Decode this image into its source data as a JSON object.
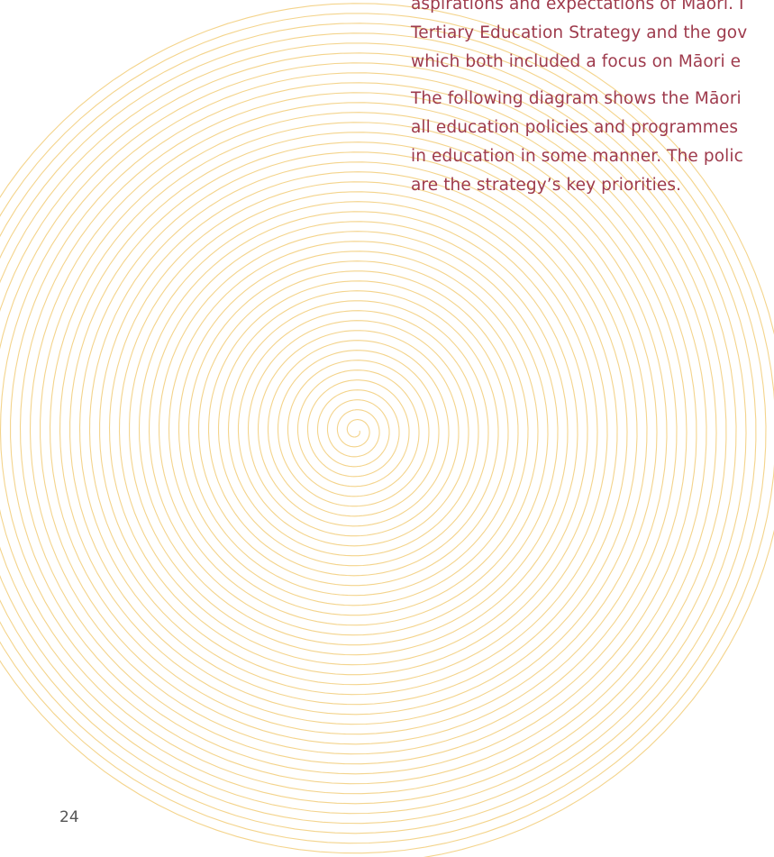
{
  "body": {
    "paragraphs": [
      {
        "lines": [
          "aspirations and expectations of Māori. I",
          "Tertiary Education Strategy and the gov",
          "which both included a focus on Māori e"
        ]
      },
      {
        "lines": [
          "The following diagram shows the Māori",
          "all education policies and programmes",
          "in education in some manner. The polic",
          "are the strategy’s key priorities."
        ]
      }
    ]
  },
  "footer": {
    "page_number": "24"
  }
}
